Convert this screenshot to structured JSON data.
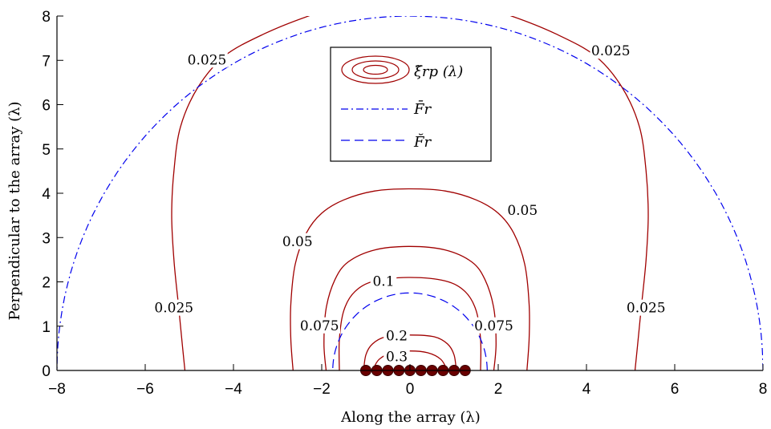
{
  "chart_data": {
    "type": "contour",
    "xlabel": "Along the array (λ)",
    "ylabel": "Perpendicular to the array (λ)",
    "xlim": [
      -8,
      8
    ],
    "ylim": [
      0,
      8
    ],
    "xticks": [
      -8,
      -6,
      -4,
      -2,
      0,
      2,
      4,
      6,
      8
    ],
    "yticks": [
      0,
      1,
      2,
      3,
      4,
      5,
      6,
      7,
      8
    ],
    "tick_labels": {
      "x": [
        "−8",
        "−6",
        "−4",
        "−2",
        "0",
        "2",
        "4",
        "6",
        "8"
      ],
      "y": [
        "0",
        "1",
        "2",
        "3",
        "4",
        "5",
        "6",
        "7",
        "8"
      ]
    },
    "grid": false,
    "legend_position": "top-center",
    "legend": [
      {
        "label": "ξ̃rp (λ)",
        "style": "solid",
        "color": "#a00000"
      },
      {
        "label": "F̄r",
        "style": "dashdot",
        "color": "#0000ee"
      },
      {
        "label": "F̆r",
        "style": "dashed",
        "color": "#0000ee"
      }
    ],
    "series": [
      {
        "name": "ξ̃rp (λ)",
        "level": 0.025,
        "curves": [
          {
            "x": [
              -5.1,
              -5.15,
              -5.25,
              -5.35,
              -5.4,
              -5.35,
              -5.2,
              -4.8,
              -4.2,
              -3.3,
              -2.3,
              -1.3
            ],
            "y": [
              0.0,
              0.5,
              1.5,
              2.5,
              3.5,
              4.5,
              5.5,
              6.4,
              7.1,
              7.6,
              8.0,
              8.3
            ]
          },
          {
            "x": [
              5.1,
              5.15,
              5.25,
              5.35,
              5.4,
              5.35,
              5.2,
              4.8,
              4.2,
              3.3,
              2.3,
              1.3
            ],
            "y": [
              0.0,
              0.5,
              1.5,
              2.5,
              3.5,
              4.5,
              5.5,
              6.4,
              7.1,
              7.6,
              8.0,
              8.3
            ]
          }
        ]
      },
      {
        "name": "ξ̃rp (λ)",
        "level": 0.05,
        "curves": [
          {
            "x": [
              -2.65,
              -2.7,
              -2.7,
              -2.6,
              -2.35,
              -2.0,
              -1.5,
              -0.8,
              0.0,
              0.8,
              1.5,
              2.0,
              2.35,
              2.6,
              2.7,
              2.7,
              2.65
            ],
            "y": [
              0.0,
              0.7,
              1.5,
              2.4,
              3.1,
              3.55,
              3.85,
              4.05,
              4.1,
              4.05,
              3.85,
              3.55,
              3.1,
              2.4,
              1.5,
              0.7,
              0.0
            ]
          }
        ]
      },
      {
        "name": "ξ̃rp (λ)",
        "level": 0.075,
        "curves": [
          {
            "x": [
              -1.9,
              -1.95,
              -1.9,
              -1.7,
              -1.4,
              -0.8,
              0.0,
              0.8,
              1.4,
              1.7,
              1.9,
              1.95,
              1.9
            ],
            "y": [
              0.0,
              0.6,
              1.4,
              2.05,
              2.45,
              2.72,
              2.8,
              2.72,
              2.45,
              2.05,
              1.4,
              0.6,
              0.0
            ]
          }
        ]
      },
      {
        "name": "ξ̃rp (λ)",
        "level": 0.1,
        "curves": [
          {
            "x": [
              -1.6,
              -1.6,
              -1.5,
              -1.25,
              -0.8,
              0.0,
              0.8,
              1.25,
              1.5,
              1.6,
              1.6
            ],
            "y": [
              0.0,
              0.7,
              1.35,
              1.78,
              2.02,
              2.1,
              2.02,
              1.78,
              1.35,
              0.7,
              0.0
            ]
          }
        ]
      },
      {
        "name": "ξ̃rp (λ)",
        "level": 0.2,
        "curves": [
          {
            "x": [
              -1.05,
              -1.0,
              -0.85,
              -0.55,
              0.0,
              0.55,
              0.85,
              1.0,
              1.05
            ],
            "y": [
              0.0,
              0.35,
              0.6,
              0.76,
              0.8,
              0.76,
              0.6,
              0.35,
              0.0
            ]
          }
        ]
      },
      {
        "name": "ξ̃rp (λ)",
        "level": 0.3,
        "curves": [
          {
            "x": [
              -0.85,
              -0.7,
              -0.4,
              0.0,
              0.4,
              0.7,
              0.85
            ],
            "y": [
              0.0,
              0.25,
              0.4,
              0.44,
              0.4,
              0.25,
              0.0
            ]
          }
        ]
      },
      {
        "name": "F̄r",
        "style": "dashdot",
        "shape": "semicircle",
        "center": [
          0,
          0
        ],
        "radius": 8
      },
      {
        "name": "F̆r",
        "style": "dashed",
        "shape": "semicircle",
        "center": [
          0,
          0
        ],
        "radius": 1.75
      }
    ],
    "contour_labels": [
      {
        "text": "0.025",
        "x": -4.6,
        "y": 7.0
      },
      {
        "text": "0.025",
        "x": 4.55,
        "y": 7.2
      },
      {
        "text": "0.025",
        "x": -5.35,
        "y": 1.4
      },
      {
        "text": "0.025",
        "x": 5.35,
        "y": 1.4
      },
      {
        "text": "0.05",
        "x": -2.55,
        "y": 2.9
      },
      {
        "text": "0.05",
        "x": 2.55,
        "y": 3.6
      },
      {
        "text": "0.075",
        "x": -2.05,
        "y": 1.0
      },
      {
        "text": "0.075",
        "x": 1.9,
        "y": 1.0
      },
      {
        "text": "0.1",
        "x": -0.6,
        "y": 2.0
      },
      {
        "text": "0.2",
        "x": -0.3,
        "y": 0.77
      },
      {
        "text": "0.3",
        "x": -0.3,
        "y": 0.3
      }
    ],
    "array_elements": {
      "x": [
        -1.0,
        -0.75,
        -0.5,
        -0.25,
        0.0,
        0.25,
        0.5,
        0.75,
        1.0,
        1.25
      ],
      "y": [
        0,
        0,
        0,
        0,
        0,
        0,
        0,
        0,
        0,
        0
      ],
      "color": "#6a0000"
    }
  },
  "colors": {
    "contour": "#a00000",
    "boundary": "#0000ee",
    "elements": "#6a0000",
    "axis": "#000000"
  }
}
